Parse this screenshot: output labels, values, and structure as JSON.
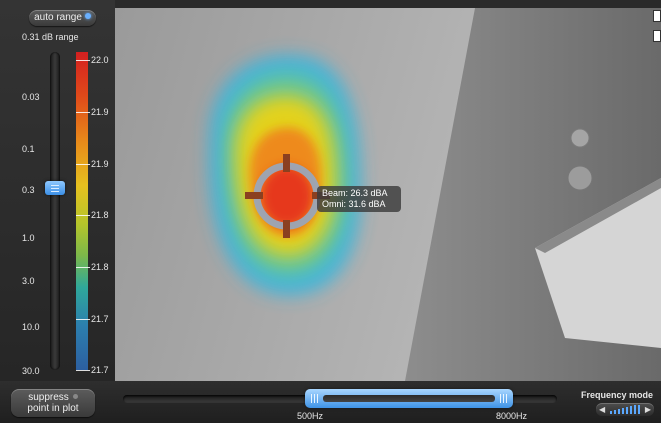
{
  "left_panel": {
    "auto_range_label": "auto range",
    "range_text": "0.31 dB range",
    "slider_scale": [
      "0.03",
      "0.1",
      "0.3",
      "1.0",
      "3.0",
      "10.0",
      "30.0"
    ],
    "colorbar_labels": [
      "22.0",
      "21.9",
      "21.9",
      "21.8",
      "21.8",
      "21.7",
      "21.7"
    ]
  },
  "plot": {
    "tooltip": {
      "beam": "Beam: 26.3 dBA",
      "omni": "Omni: 31.6 dBA"
    }
  },
  "bottom_bar": {
    "suppress_line1": "suppress",
    "suppress_line2": "point in plot",
    "freq_low": "500Hz",
    "freq_high": "8000Hz",
    "frequency_mode_label": "Frequency mode"
  },
  "colors": {
    "accent": "#3f93e6",
    "heat_hot": "#e83a1a",
    "heat_cold": "#37b6e0"
  },
  "icons": [
    "target-icon",
    "grip-icon",
    "arrow-left-icon",
    "arrow-right-icon",
    "spectrum-bars-icon"
  ]
}
